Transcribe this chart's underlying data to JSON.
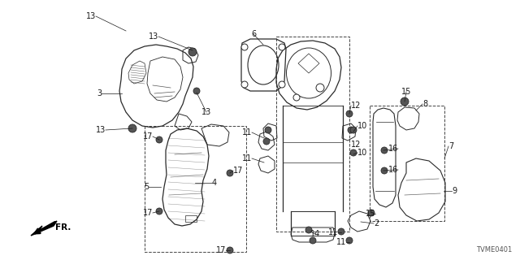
{
  "bg_color": "#ffffff",
  "line_color": "#2a2a2a",
  "part_label_color": "#1a1a1a",
  "diagram_id": "TVME0401",
  "fr_label": "FR.",
  "fig_width": 6.4,
  "fig_height": 3.2,
  "dpi": 100
}
